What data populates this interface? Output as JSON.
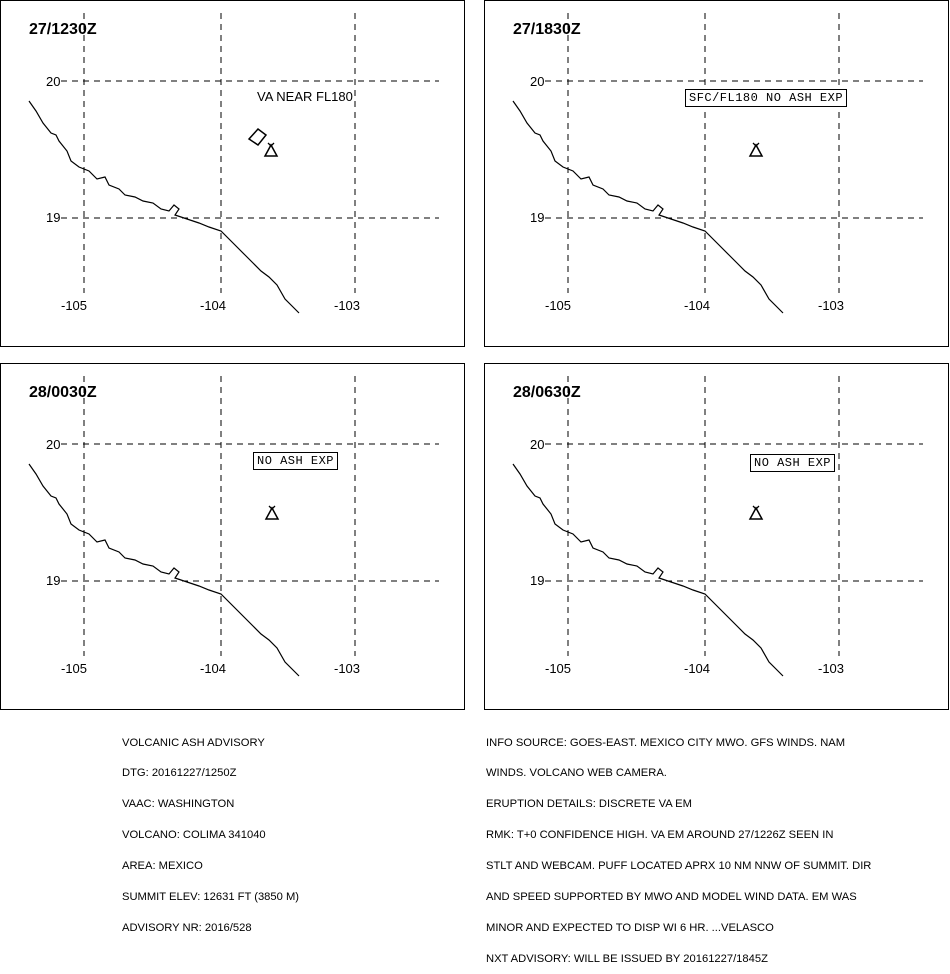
{
  "panels": [
    {
      "time": "27/1230Z",
      "label": "VA NEAR FL180",
      "label_boxed": false,
      "has_ash_polygon": true
    },
    {
      "time": "27/1830Z",
      "label": "SFC/FL180 NO ASH EXP",
      "label_boxed": true,
      "has_ash_polygon": false
    },
    {
      "time": "28/0030Z",
      "label": "NO ASH EXP",
      "label_boxed": true,
      "has_ash_polygon": false
    },
    {
      "time": "28/0630Z",
      "label": "NO ASH EXP",
      "label_boxed": true,
      "has_ash_polygon": false
    }
  ],
  "axes": {
    "latitudes": [
      "20",
      "19"
    ],
    "longitudes": [
      "-105",
      "-104",
      "-103"
    ]
  },
  "advisory": {
    "lines": [
      "VOLCANIC ASH ADVISORY",
      "DTG: 20161227/1250Z",
      "VAAC: WASHINGTON",
      "VOLCANO: COLIMA 341040",
      "AREA: MEXICO",
      "SUMMIT ELEV: 12631 FT (3850 M)",
      "ADVISORY NR: 2016/528"
    ]
  },
  "remarks": {
    "lines": [
      "INFO SOURCE: GOES-EAST. MEXICO CITY MWO. GFS WINDS. NAM",
      "WINDS. VOLCANO WEB CAMERA.",
      "ERUPTION DETAILS: DISCRETE VA EM",
      "RMK: T+0 CONFIDENCE HIGH. VA EM AROUND 27/1226Z SEEN IN",
      "STLT AND WEBCAM. PUFF LOCATED APRX 10 NM NNW OF SUMMIT. DIR",
      "AND SPEED SUPPORTED BY MWO AND MODEL WIND DATA. EM WAS",
      "MINOR AND EXPECTED TO DISP WI 6 HR. ...VELASCO",
      "NXT ADVISORY: WILL BE ISSUED BY 20161227/1845Z"
    ]
  },
  "colors": {
    "line": "#000000",
    "background": "#ffffff"
  },
  "icons": {
    "volcano": "volcano-icon"
  }
}
